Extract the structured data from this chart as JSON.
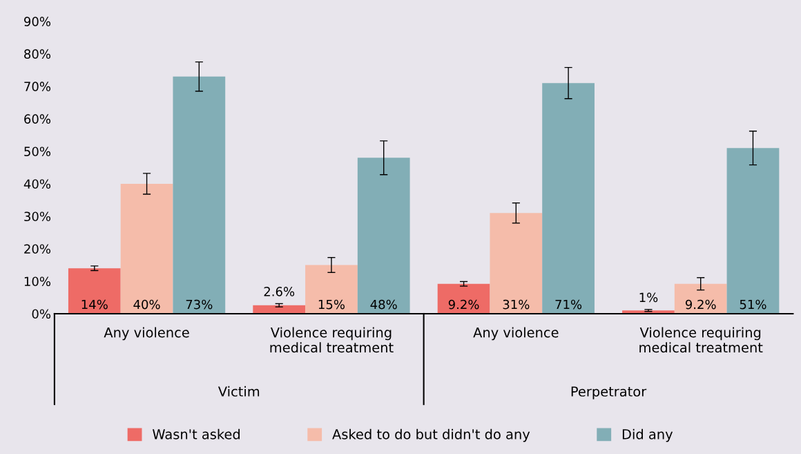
{
  "chart_data": {
    "type": "bar",
    "categories": [
      "Any violence",
      "Violence requiring\nmedical treatment",
      "Any violence",
      "Violence requiring\nmedical treatment"
    ],
    "annotations": [
      "Victim",
      "Perpetrator"
    ],
    "series": [
      {
        "name": "Wasn't asked",
        "color": "#ee6b66",
        "values": [
          14,
          2.6,
          9.2,
          1
        ],
        "errors": [
          0.7,
          0.5,
          0.7,
          0.3
        ],
        "value_labels": [
          "14%",
          "2.6%",
          "9.2%",
          "1%"
        ]
      },
      {
        "name": "Asked to do but didn't do any",
        "color": "#f5bcaa",
        "values": [
          40,
          15,
          31,
          9.2
        ],
        "errors": [
          3.2,
          2.3,
          3.1,
          1.9
        ],
        "value_labels": [
          "40%",
          "15%",
          "31%",
          "9.2%"
        ]
      },
      {
        "name": "Did any",
        "color": "#82aeb6",
        "values": [
          73,
          48,
          71,
          51
        ],
        "errors": [
          4.5,
          5.2,
          4.8,
          5.2
        ],
        "value_labels": [
          "73%",
          "48%",
          "71%",
          "51%"
        ]
      }
    ],
    "ylim": [
      0,
      90
    ],
    "yticks": [
      {
        "value": 0,
        "label": "0%"
      },
      {
        "value": 10,
        "label": "10%"
      },
      {
        "value": 20,
        "label": "20%"
      },
      {
        "value": 30,
        "label": "30%"
      },
      {
        "value": 40,
        "label": "40%"
      },
      {
        "value": 50,
        "label": "50%"
      },
      {
        "value": 60,
        "label": "60%"
      },
      {
        "value": 70,
        "label": "70%"
      },
      {
        "value": 80,
        "label": "80%"
      },
      {
        "value": 90,
        "label": "90%"
      }
    ],
    "grid": false,
    "legend": "bottom"
  }
}
